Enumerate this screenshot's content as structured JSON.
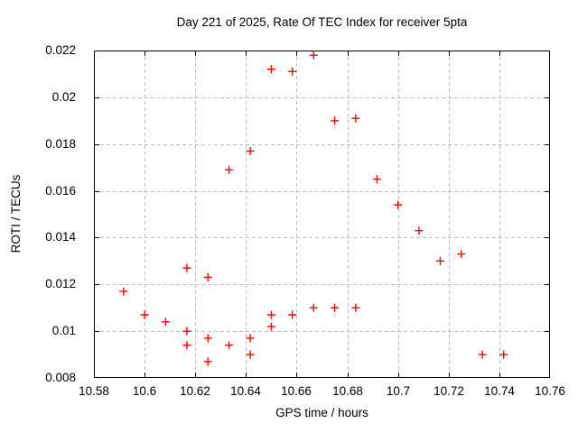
{
  "chart_data": {
    "type": "scatter",
    "title": "Day 221 of 2025, Rate Of TEC Index for receiver 5pta",
    "xlabel": "GPS time / hours",
    "ylabel": "ROTI / TECUs",
    "xlim": [
      10.58,
      10.76
    ],
    "ylim": [
      0.008,
      0.022
    ],
    "xticks": [
      {
        "v": 10.58,
        "label": "10.58"
      },
      {
        "v": 10.6,
        "label": "10.6"
      },
      {
        "v": 10.62,
        "label": "10.62"
      },
      {
        "v": 10.64,
        "label": "10.64"
      },
      {
        "v": 10.66,
        "label": "10.66"
      },
      {
        "v": 10.68,
        "label": "10.68"
      },
      {
        "v": 10.7,
        "label": "10.7"
      },
      {
        "v": 10.72,
        "label": "10.72"
      },
      {
        "v": 10.74,
        "label": "10.74"
      },
      {
        "v": 10.76,
        "label": "10.76"
      }
    ],
    "yticks": [
      {
        "v": 0.008,
        "label": "0.008"
      },
      {
        "v": 0.01,
        "label": "0.01"
      },
      {
        "v": 0.012,
        "label": "0.012"
      },
      {
        "v": 0.014,
        "label": "0.014"
      },
      {
        "v": 0.016,
        "label": "0.016"
      },
      {
        "v": 0.018,
        "label": "0.018"
      },
      {
        "v": 0.02,
        "label": "0.02"
      },
      {
        "v": 0.022,
        "label": "0.022"
      }
    ],
    "grid": true,
    "legend": "none",
    "marker": "plus",
    "marker_color": "#ff0000",
    "points": [
      [
        10.5917,
        0.0117
      ],
      [
        10.6,
        0.0107
      ],
      [
        10.6083,
        0.0104
      ],
      [
        10.6167,
        0.0127
      ],
      [
        10.6167,
        0.01
      ],
      [
        10.6167,
        0.0094
      ],
      [
        10.625,
        0.0123
      ],
      [
        10.625,
        0.0097
      ],
      [
        10.625,
        0.0087
      ],
      [
        10.6333,
        0.0169
      ],
      [
        10.6333,
        0.0094
      ],
      [
        10.6417,
        0.0177
      ],
      [
        10.6417,
        0.0097
      ],
      [
        10.6417,
        0.009
      ],
      [
        10.65,
        0.0212
      ],
      [
        10.65,
        0.0107
      ],
      [
        10.65,
        0.0102
      ],
      [
        10.6583,
        0.0211
      ],
      [
        10.6583,
        0.0107
      ],
      [
        10.6667,
        0.0218
      ],
      [
        10.6667,
        0.011
      ],
      [
        10.675,
        0.019
      ],
      [
        10.675,
        0.011
      ],
      [
        10.6833,
        0.0191
      ],
      [
        10.6833,
        0.011
      ],
      [
        10.6917,
        0.0165
      ],
      [
        10.7,
        0.0154
      ],
      [
        10.7083,
        0.0143
      ],
      [
        10.7167,
        0.013
      ],
      [
        10.725,
        0.0133
      ],
      [
        10.7333,
        0.009
      ],
      [
        10.7417,
        0.009
      ]
    ]
  }
}
